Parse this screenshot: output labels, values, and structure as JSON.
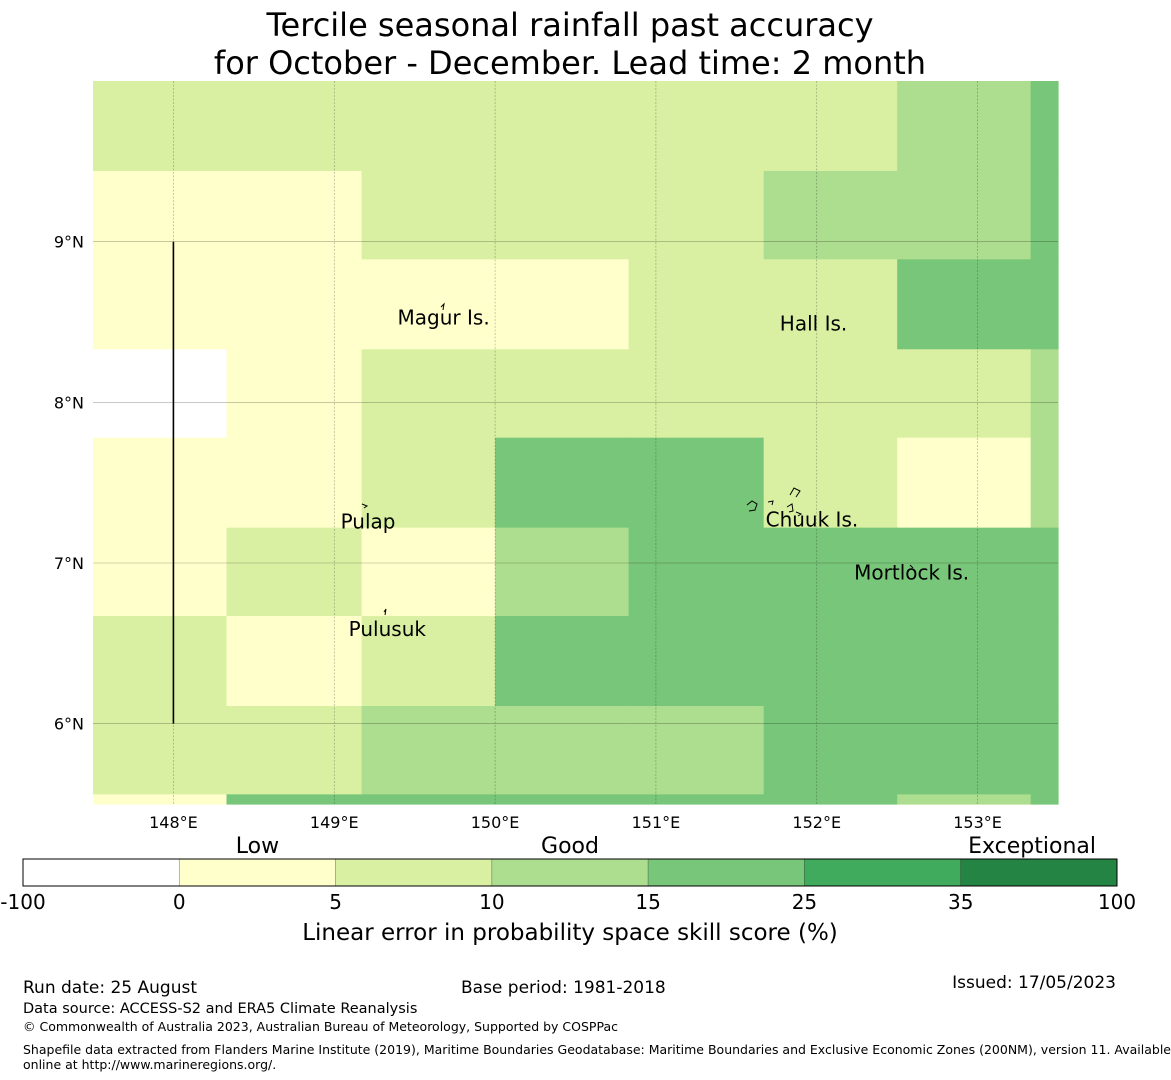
{
  "title": {
    "line1": "Tercile seasonal rainfall past accuracy",
    "line2": "for October - December. Lead time: 2 month"
  },
  "map": {
    "x_range": [
      147.5,
      153.5
    ],
    "y_range": [
      5.5,
      10.0
    ],
    "grid": true,
    "lon_ticks": [
      {
        "value": 148,
        "label": "148°E"
      },
      {
        "value": 149,
        "label": "149°E"
      },
      {
        "value": 150,
        "label": "150°E"
      },
      {
        "value": 151,
        "label": "151°E"
      },
      {
        "value": 152,
        "label": "152°E"
      },
      {
        "value": 153,
        "label": "153°E"
      }
    ],
    "lat_ticks": [
      {
        "value": 9,
        "label": "9°N"
      },
      {
        "value": 8,
        "label": "8°N"
      },
      {
        "value": 7,
        "label": "7°N"
      },
      {
        "value": 6,
        "label": "6°N"
      }
    ],
    "place_labels": [
      {
        "name": "Magur Is.",
        "lon": 149.68,
        "lat": 8.52
      },
      {
        "name": "Hall Is.",
        "lon": 151.98,
        "lat": 8.48
      },
      {
        "name": "Pulap",
        "lon": 149.21,
        "lat": 7.25
      },
      {
        "name": "Chuuk Is.",
        "lon": 151.97,
        "lat": 7.26
      },
      {
        "name": "Mortlock Is.",
        "lon": 152.59,
        "lat": 6.93
      },
      {
        "name": "Pulusuk",
        "lon": 149.33,
        "lat": 6.58
      }
    ],
    "skill_grid": {
      "lon_edges": [
        147.5,
        148.33,
        149.17,
        150.0,
        150.83,
        151.67,
        152.5,
        153.33,
        153.5
      ],
      "lat_edges": [
        10.0,
        9.44,
        8.89,
        8.33,
        7.78,
        7.22,
        6.67,
        6.11,
        5.56,
        5.5
      ],
      "classes": [
        [
          2,
          2,
          2,
          2,
          2,
          2,
          3,
          4
        ],
        [
          1,
          1,
          2,
          2,
          2,
          3,
          3,
          4
        ],
        [
          1,
          1,
          1,
          1,
          2,
          2,
          4,
          4
        ],
        [
          0,
          1,
          2,
          2,
          2,
          2,
          2,
          3
        ],
        [
          1,
          1,
          2,
          4,
          4,
          2,
          1,
          3
        ],
        [
          1,
          2,
          1,
          3,
          4,
          4,
          4,
          4
        ],
        [
          2,
          1,
          2,
          4,
          4,
          4,
          4,
          4
        ],
        [
          2,
          2,
          3,
          3,
          3,
          4,
          4,
          4
        ],
        [
          1,
          4,
          4,
          4,
          4,
          4,
          3,
          4
        ]
      ]
    },
    "eez_line": {
      "lon": 148.0,
      "lat_from": 9.0,
      "lat_to": 6.0
    }
  },
  "legend": {
    "category_labels": [
      "Low",
      "Good",
      "Exceptional"
    ],
    "boundaries": [
      "-100",
      "0",
      "5",
      "10",
      "15",
      "25",
      "35",
      "100"
    ],
    "colors": [
      "#ffffff",
      "#ffffcc",
      "#d9f0a3",
      "#addd8e",
      "#78c679",
      "#41ab5d",
      "#238443"
    ],
    "title": "Linear error in probability space skill score (%)"
  },
  "footer": {
    "run_date": "Run date: 25 August",
    "base_period": "Base period: 1981-2018",
    "issued": "Issued: 17/05/2023",
    "data_source": "Data source: ACCESS-S2 and ERA5 Climate Reanalysis",
    "copyright": "© Commonwealth of Australia 2023, Australian Bureau of Meteorology, Supported by COSPPac",
    "shapefile_line1": "Shapefile data extracted from Flanders Marine Institute (2019), Maritime Boundaries Geodatabase: Maritime Boundaries and Exclusive Economic Zones (200NM), version 11. Available",
    "shapefile_line2": "online at http://www.marineregions.org/."
  }
}
